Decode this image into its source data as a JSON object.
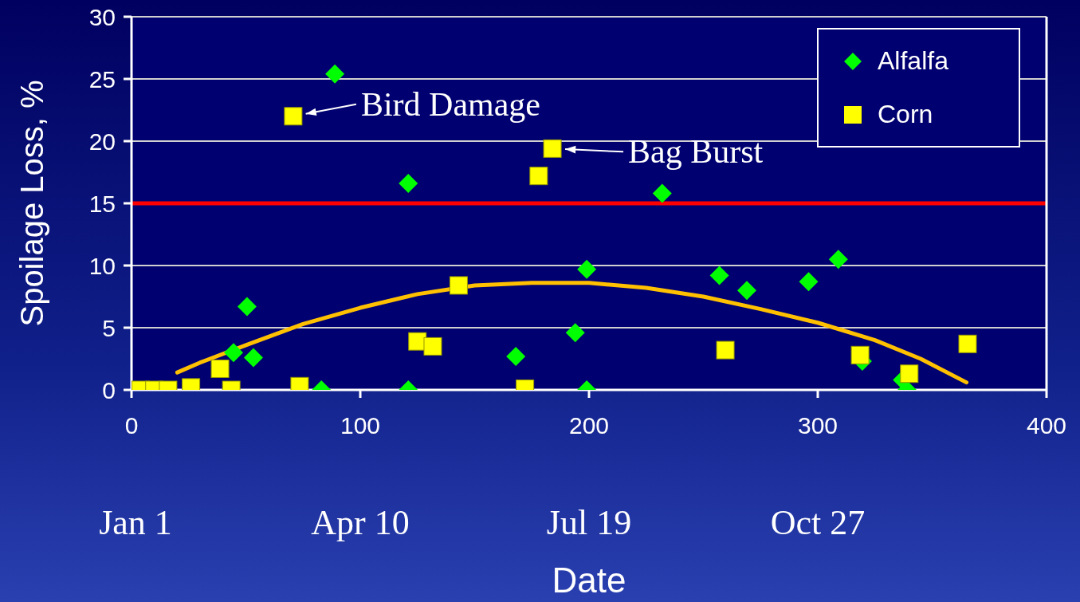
{
  "chart_data": {
    "type": "scatter",
    "xlabel": "Date",
    "ylabel": "Spoilage Loss, %",
    "xlim": [
      0,
      400
    ],
    "xticks": [
      0,
      100,
      200,
      300,
      400
    ],
    "ylim": [
      0,
      30
    ],
    "yticks": [
      0,
      5,
      10,
      15,
      20,
      25,
      30
    ],
    "grid": "y",
    "legend": "top right",
    "series": [
      {
        "name": "Alfalfa",
        "color": "#00ff00",
        "marker": "diamond",
        "x": [
          44.6,
          50.5,
          53.3,
          83,
          88.9,
          121,
          121,
          168,
          194,
          199,
          199,
          232,
          257,
          269,
          296,
          309,
          319.5,
          337,
          339
        ],
        "values": [
          3.0,
          6.7,
          2.6,
          0,
          25.4,
          0,
          16.6,
          2.7,
          4.6,
          9.7,
          0,
          15.8,
          9.2,
          8.0,
          8.7,
          10.5,
          2.3,
          0.8,
          0
        ]
      },
      {
        "name": "Corn",
        "color": "#ffff00",
        "marker": "square",
        "x": [
          4,
          10,
          16,
          26,
          38.7,
          43.6,
          70.7,
          73.5,
          125,
          131.7,
          143,
          172,
          178,
          184,
          259.6,
          318.5,
          340,
          365.5
        ],
        "values": [
          0,
          0,
          0,
          0.2,
          1.7,
          0,
          22,
          0.3,
          3.9,
          3.5,
          8.4,
          0.1,
          17.2,
          19.4,
          3.2,
          2.8,
          1.3,
          3.7
        ]
      },
      {
        "type": "line",
        "color": "#ffc000",
        "marker": "none",
        "x": [
          20,
          30,
          50,
          75,
          100,
          125,
          150,
          175,
          200,
          225,
          250,
          275,
          300,
          325,
          345,
          365
        ],
        "values": [
          1.4,
          2.2,
          3.6,
          5.3,
          6.6,
          7.7,
          8.4,
          8.6,
          8.6,
          8.2,
          7.5,
          6.5,
          5.4,
          4.0,
          2.5,
          0.6
        ]
      }
    ],
    "ref_lines": [
      {
        "axis": "y",
        "value": 15,
        "color": "#ff0000"
      }
    ],
    "annotations": [
      {
        "text": "Bird Damage",
        "x": 70.7,
        "y": 22
      },
      {
        "text": "Bag Burst",
        "x": 184,
        "y": 19.4
      },
      "Jan 1",
      "Apr 10",
      "Jul 19",
      "Oct 27"
    ]
  }
}
